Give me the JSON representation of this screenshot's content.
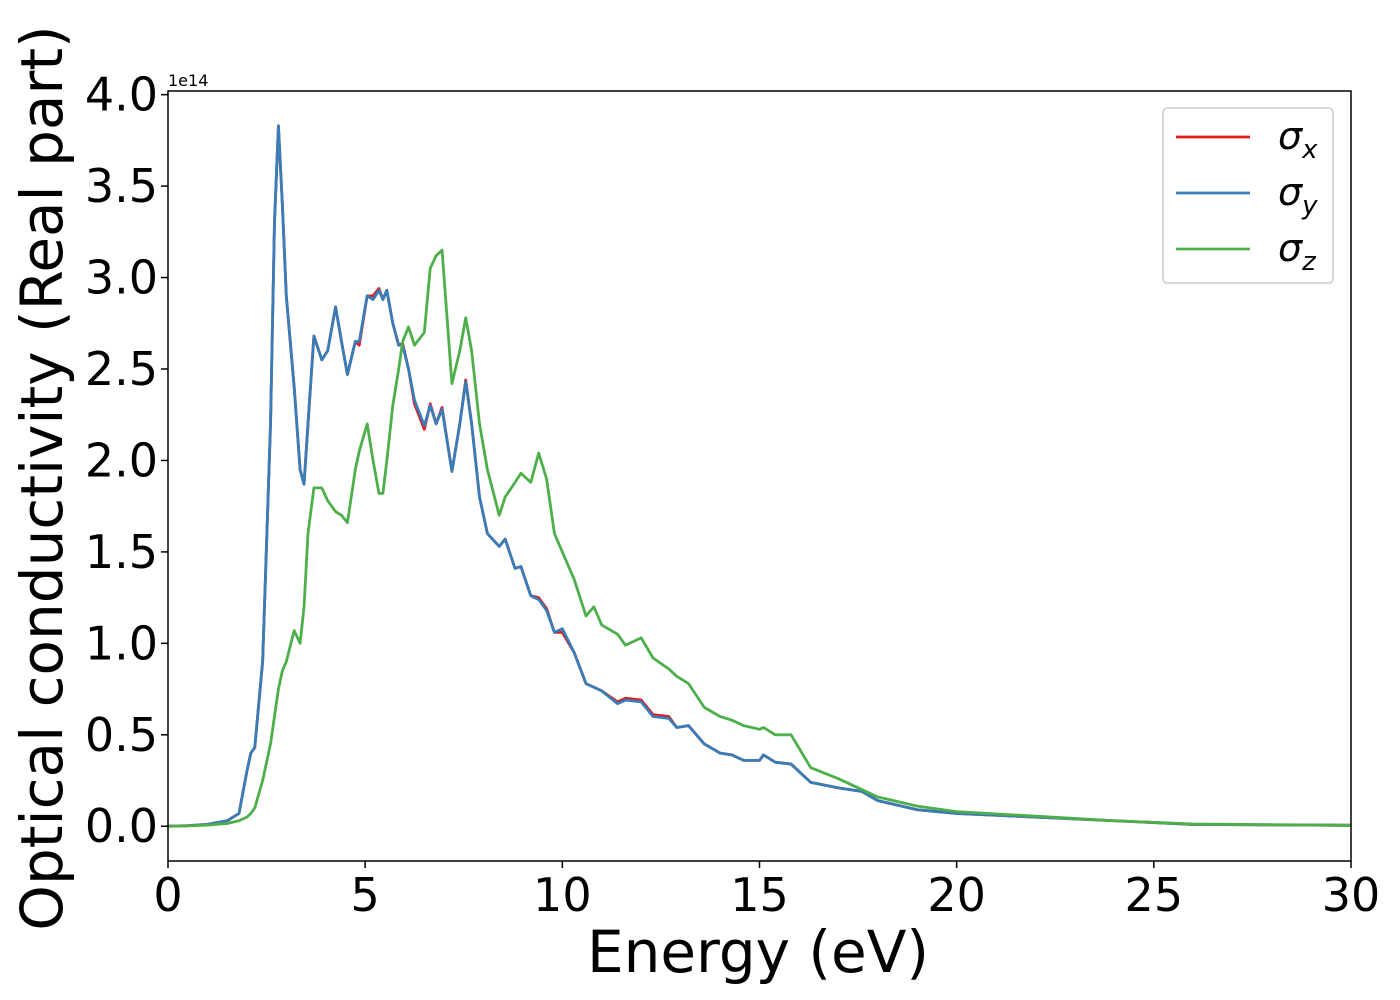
{
  "chart_data": {
    "type": "line",
    "xlabel": "Energy (eV)",
    "ylabel": "Optical conductivity (Real part)",
    "offset_text": "1e14",
    "x": [
      0,
      0.5,
      1.0,
      1.5,
      1.8,
      2.0,
      2.1,
      2.2,
      2.4,
      2.6,
      2.7,
      2.8,
      2.9,
      3.0,
      3.2,
      3.35,
      3.45,
      3.55,
      3.7,
      3.9,
      4.05,
      4.25,
      4.4,
      4.55,
      4.75,
      4.85,
      5.05,
      5.2,
      5.35,
      5.45,
      5.55,
      5.7,
      5.85,
      5.95,
      6.1,
      6.25,
      6.5,
      6.65,
      6.8,
      6.95,
      7.2,
      7.4,
      7.55,
      7.7,
      7.9,
      8.1,
      8.4,
      8.55,
      8.8,
      8.95,
      9.2,
      9.4,
      9.6,
      9.8,
      10.0,
      10.3,
      10.6,
      10.8,
      11.0,
      11.4,
      11.6,
      12.0,
      12.3,
      12.7,
      12.9,
      13.2,
      13.6,
      14.0,
      14.3,
      14.6,
      15.0,
      15.1,
      15.4,
      15.8,
      16.3,
      17.0,
      17.6,
      18.0,
      19.0,
      20.0,
      22.0,
      24.0,
      26.0,
      30.0
    ],
    "series": [
      {
        "name": "σx",
        "color": "#e41a1c",
        "values": [
          0,
          0.003,
          0.01,
          0.03,
          0.07,
          0.3,
          0.4,
          0.43,
          0.9,
          2.2,
          3.3,
          3.83,
          3.4,
          2.9,
          2.4,
          1.95,
          1.87,
          2.2,
          2.68,
          2.55,
          2.6,
          2.84,
          2.65,
          2.47,
          2.65,
          2.63,
          2.9,
          2.9,
          2.94,
          2.88,
          2.93,
          2.75,
          2.63,
          2.64,
          2.5,
          2.31,
          2.17,
          2.31,
          2.2,
          2.29,
          1.94,
          2.2,
          2.44,
          2.2,
          1.8,
          1.6,
          1.53,
          1.57,
          1.41,
          1.42,
          1.26,
          1.25,
          1.19,
          1.06,
          1.06,
          0.95,
          0.78,
          0.76,
          0.74,
          0.68,
          0.7,
          0.69,
          0.61,
          0.6,
          0.54,
          0.55,
          0.45,
          0.4,
          0.39,
          0.36,
          0.36,
          0.39,
          0.35,
          0.34,
          0.24,
          0.21,
          0.19,
          0.14,
          0.09,
          0.07,
          0.05,
          0.03,
          0.01,
          0.005
        ]
      },
      {
        "name": "σy",
        "color": "#377eb8",
        "values": [
          0,
          0.003,
          0.01,
          0.03,
          0.07,
          0.3,
          0.4,
          0.43,
          0.9,
          2.2,
          3.3,
          3.83,
          3.4,
          2.9,
          2.4,
          1.95,
          1.87,
          2.2,
          2.68,
          2.55,
          2.6,
          2.84,
          2.65,
          2.47,
          2.65,
          2.65,
          2.9,
          2.88,
          2.93,
          2.88,
          2.93,
          2.75,
          2.63,
          2.63,
          2.5,
          2.33,
          2.19,
          2.3,
          2.2,
          2.28,
          1.94,
          2.2,
          2.43,
          2.2,
          1.8,
          1.6,
          1.53,
          1.57,
          1.41,
          1.42,
          1.26,
          1.24,
          1.18,
          1.06,
          1.08,
          0.95,
          0.78,
          0.76,
          0.74,
          0.67,
          0.69,
          0.68,
          0.6,
          0.59,
          0.54,
          0.55,
          0.45,
          0.4,
          0.39,
          0.36,
          0.36,
          0.39,
          0.35,
          0.34,
          0.24,
          0.21,
          0.19,
          0.14,
          0.09,
          0.07,
          0.05,
          0.03,
          0.01,
          0.005
        ]
      },
      {
        "name": "σz",
        "color": "#4daf4a",
        "values": [
          0,
          0.002,
          0.006,
          0.015,
          0.03,
          0.05,
          0.07,
          0.1,
          0.25,
          0.45,
          0.6,
          0.75,
          0.85,
          0.9,
          1.07,
          1.0,
          1.2,
          1.6,
          1.85,
          1.85,
          1.78,
          1.72,
          1.7,
          1.66,
          1.95,
          2.05,
          2.2,
          2.0,
          1.82,
          1.82,
          2.0,
          2.3,
          2.5,
          2.65,
          2.73,
          2.63,
          2.7,
          3.05,
          3.12,
          3.15,
          2.42,
          2.6,
          2.78,
          2.6,
          2.2,
          1.95,
          1.7,
          1.8,
          1.88,
          1.93,
          1.88,
          2.04,
          1.9,
          1.6,
          1.5,
          1.35,
          1.15,
          1.2,
          1.1,
          1.05,
          0.99,
          1.03,
          0.92,
          0.86,
          0.82,
          0.78,
          0.65,
          0.6,
          0.58,
          0.55,
          0.53,
          0.54,
          0.5,
          0.5,
          0.32,
          0.26,
          0.2,
          0.16,
          0.11,
          0.08,
          0.055,
          0.03,
          0.012,
          0.005
        ]
      }
    ],
    "xlim": [
      0,
      30
    ],
    "xticks": [
      0,
      5,
      10,
      15,
      20,
      25,
      30
    ],
    "ylim": [
      -0.19,
      4.02
    ],
    "yticks": [
      {
        "value": 0,
        "label": "0.0"
      },
      0.5,
      {
        "value": 1,
        "label": "1.0"
      },
      1.5,
      {
        "value": 2,
        "label": "2.0"
      },
      2.5,
      {
        "value": 3,
        "label": "3.0"
      },
      3.5,
      {
        "value": 4,
        "label": "4.0"
      }
    ],
    "grid": false,
    "legend": "upper right"
  }
}
